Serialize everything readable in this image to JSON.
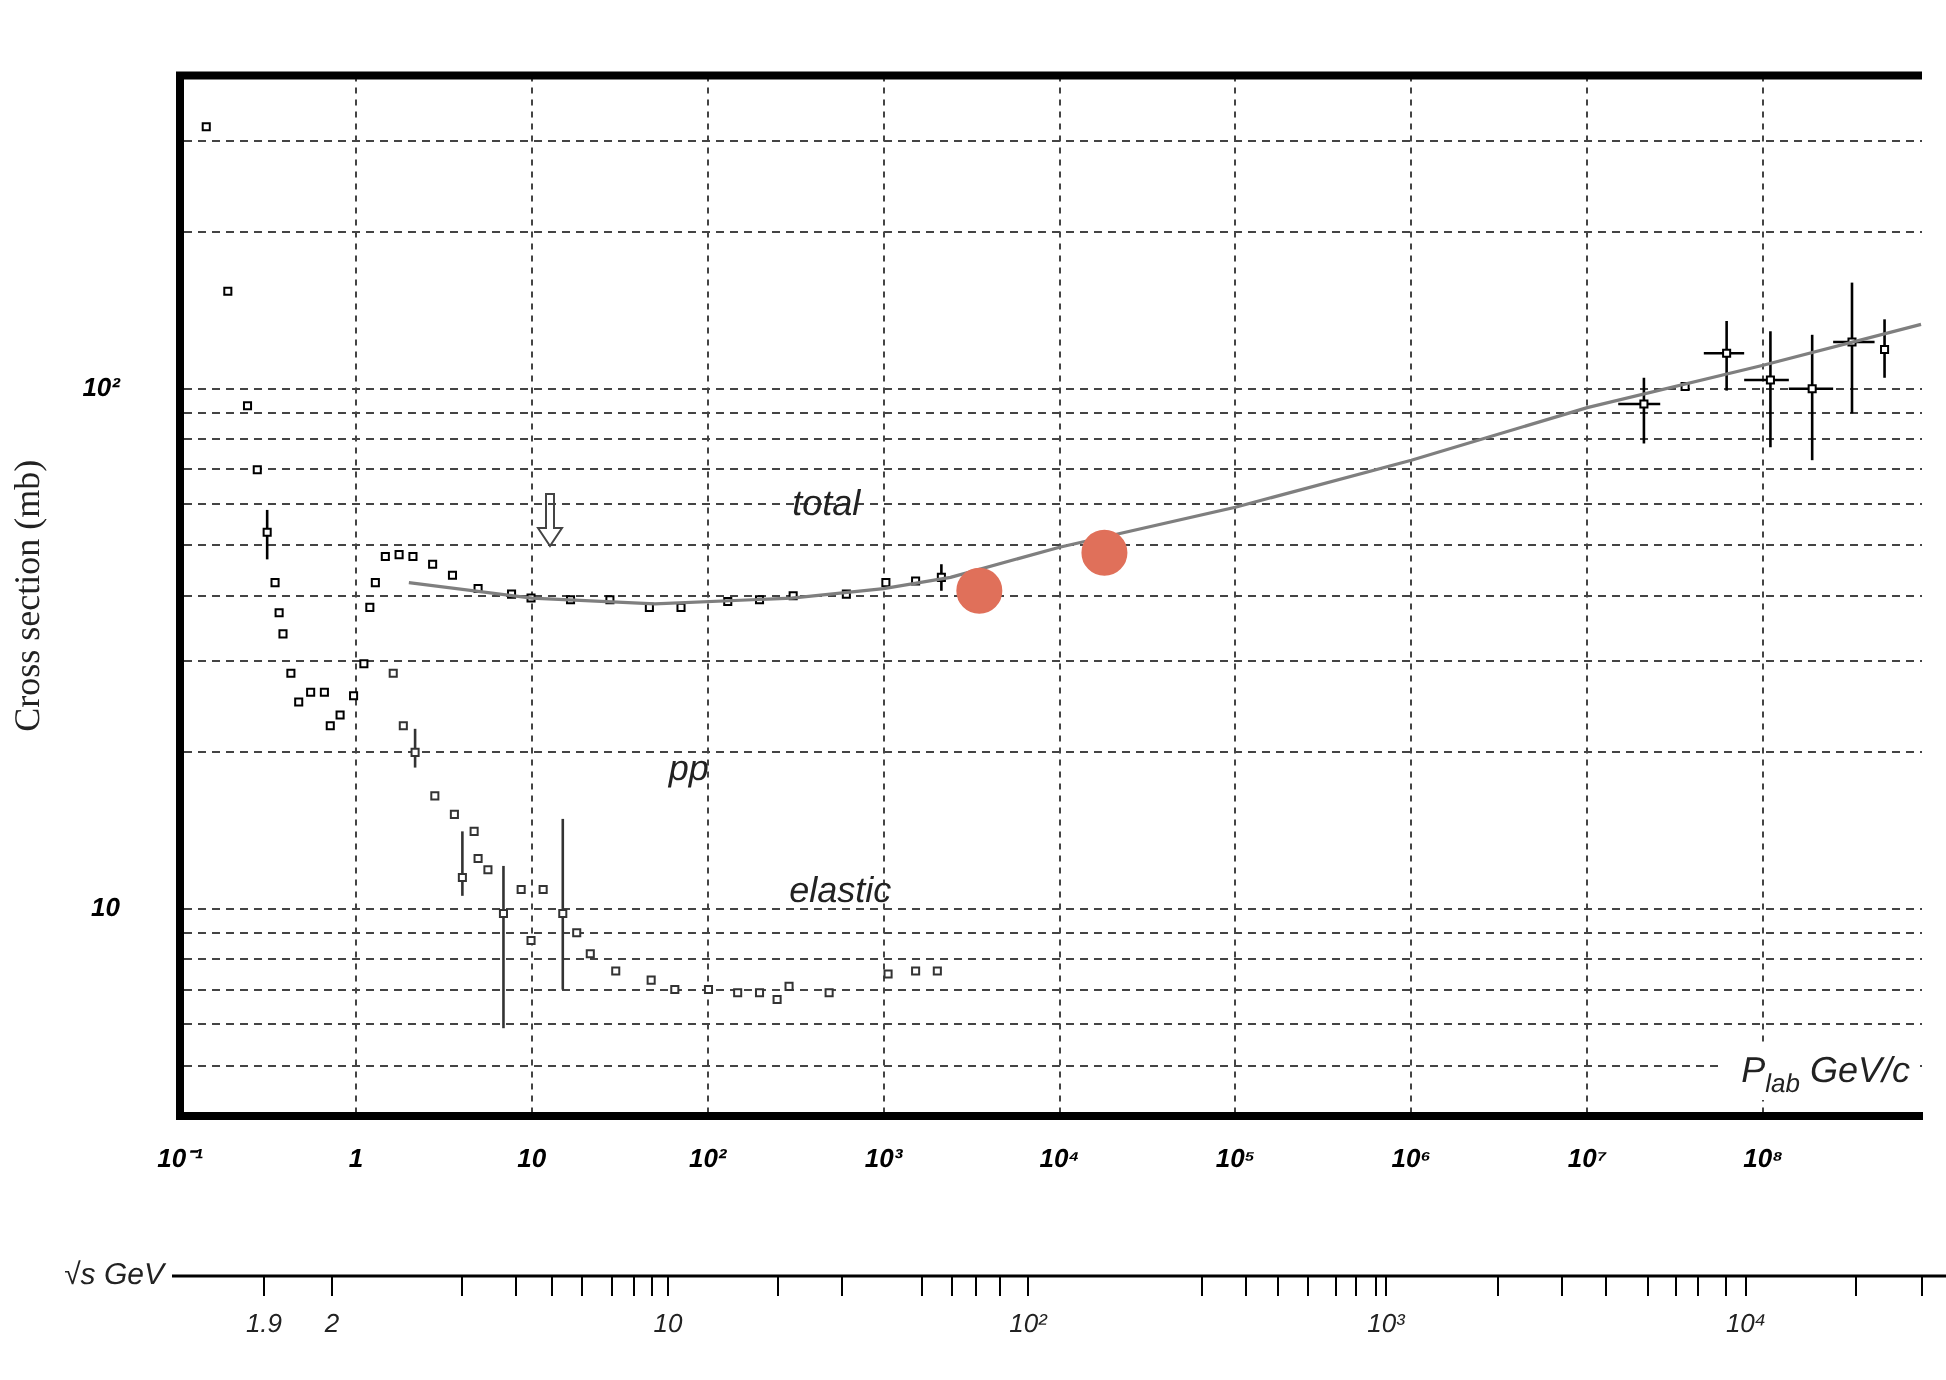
{
  "chart_data": [
    {
      "type": "scatter",
      "ylabel": "Cross section (mb)",
      "xlabel": "P$_{lab}$ GeV/c",
      "log": "xy",
      "grid": true,
      "xlim": [
        0.1,
        800000000.0
      ],
      "ylim": [
        4,
        400
      ],
      "xticks": [
        {
          "value": 0.1,
          "label": "10⁻¹"
        },
        1,
        10,
        {
          "value": 100,
          "label": "10²"
        },
        {
          "value": 1000,
          "label": "10³"
        },
        {
          "value": 10000,
          "label": "10⁴"
        },
        {
          "value": 100000,
          "label": "10⁵"
        },
        {
          "value": 1000000,
          "label": "10⁶"
        },
        {
          "value": 10000000,
          "label": "10⁷"
        },
        {
          "value": 100000000,
          "label": "10⁸"
        }
      ],
      "yticks": [
        {
          "value": 5,
          "label": null
        },
        {
          "value": 6,
          "label": null
        },
        {
          "value": 7,
          "label": null
        },
        {
          "value": 8,
          "label": null
        },
        {
          "value": 9,
          "label": null
        },
        10,
        {
          "value": 20,
          "label": null
        },
        {
          "value": 30,
          "label": null
        },
        {
          "value": 40,
          "label": null
        },
        {
          "value": 50,
          "label": null
        },
        {
          "value": 60,
          "label": null
        },
        {
          "value": 70,
          "label": null
        },
        {
          "value": 80,
          "label": null
        },
        {
          "value": 90,
          "label": null
        },
        {
          "value": 100,
          "label": "10²"
        },
        {
          "value": 200,
          "label": null
        },
        {
          "value": 300,
          "label": null
        }
      ],
      "annotations": [
        "total",
        "pp",
        "elastic"
      ],
      "series": [
        {
          "marker": "square",
          "color": "#000000",
          "x": [
            0.141,
            0.187,
            0.242,
            0.275,
            0.313,
            0.347,
            0.366,
            0.385,
            0.427,
            0.473,
            0.553,
            0.662,
            0.715,
            0.813,
            0.97,
            1.11,
            1.2,
            1.29,
            1.47,
            1.76,
            2.11,
            2.73,
            3.54,
            4.95,
            7.67,
            9.9,
            16.6,
            27.8,
            46.6,
            70.5,
            130,
            197,
            306,
            614,
            1030,
            1520,
            2130,
            21000000.0,
            36000000.0,
            62000000.0,
            110000000.0,
            190000000.0,
            320000000.0,
            490000000.0
          ],
          "values": [
            319,
            154,
            92.8,
            69.9,
            53,
            42.4,
            37.1,
            33.8,
            28.4,
            25,
            26.1,
            26.1,
            22.5,
            23.6,
            25.7,
            29.6,
            38,
            42.4,
            47.6,
            48,
            47.6,
            46,
            43.8,
            41.3,
            40.3,
            39.6,
            39.3,
            39.3,
            38,
            38,
            39,
            39.3,
            40,
            40.3,
            42.4,
            42.7,
            43.4,
            93.5,
            101,
            117,
            104,
            100,
            123,
            119
          ],
          "errors": [
            null,
            null,
            null,
            null,
            [
              47,
              58.5
            ],
            null,
            null,
            null,
            null,
            null,
            null,
            null,
            null,
            null,
            null,
            null,
            null,
            null,
            null,
            null,
            null,
            null,
            null,
            null,
            null,
            null,
            null,
            null,
            null,
            null,
            null,
            null,
            null,
            null,
            null,
            null,
            [
              40.9,
              46
            ],
            [
              78.5,
              105
            ],
            null,
            [
              99.2,
              135
            ],
            [
              77.2,
              129
            ],
            [
              72.9,
              127
            ],
            [
              89.7,
              160
            ],
            [
              105,
              136
            ]
          ],
          "xerrors": [
            null,
            null,
            null,
            null,
            null,
            null,
            null,
            null,
            null,
            null,
            null,
            null,
            null,
            null,
            null,
            null,
            null,
            null,
            null,
            null,
            null,
            null,
            null,
            null,
            null,
            null,
            null,
            null,
            null,
            null,
            null,
            null,
            null,
            null,
            null,
            null,
            null,
            [
              15000000.0,
              26000000.0
            ],
            null,
            [
              46000000.0,
              78000000.0
            ],
            [
              78000000.0,
              140000000.0
            ],
            [
              140000000.0,
              250000000.0
            ],
            [
              250000000.0,
              430000000.0
            ],
            null
          ]
        },
        {
          "marker": "square",
          "color": "#333333",
          "x": [
            1.63,
            1.86,
            2.17,
            2.81,
            3.63,
            4.03,
            4.7,
            4.95,
            5.63,
            6.9,
            8.7,
            9.9,
            11.6,
            15,
            18,
            21.5,
            30,
            47.7,
            65,
            101,
            148,
            197,
            248,
            290,
            490,
            1060,
            1520,
            2020
          ],
          "values": [
            28.4,
            22.5,
            20,
            16.5,
            15.2,
            11.5,
            14.1,
            12.5,
            11.9,
            9.8,
            10.9,
            8.7,
            10.9,
            9.8,
            9,
            8.2,
            7.6,
            7.3,
            7,
            7,
            6.9,
            6.9,
            6.7,
            7.1,
            6.9,
            7.5,
            7.6,
            7.6
          ],
          "errors": [
            null,
            null,
            [
              18.7,
              22.2
            ],
            null,
            null,
            [
              10.6,
              14.1
            ],
            null,
            null,
            null,
            [
              5.9,
              12.1
            ],
            null,
            null,
            null,
            [
              7,
              14.9
            ],
            null,
            null,
            null,
            null,
            null,
            null,
            null,
            null,
            null,
            null,
            null,
            null,
            null,
            null
          ]
        },
        {
          "type": "line",
          "marker": "none",
          "line_style": "solid",
          "color": "#7f7f7f",
          "x": [
            2,
            10,
            50,
            300,
            1000,
            2400,
            10000,
            100000,
            1000000,
            10000000,
            100000000,
            790000000
          ],
          "values": [
            42.4,
            39.6,
            38.6,
            39.6,
            41.3,
            43.4,
            49.6,
            59.2,
            72.9,
            92,
            111,
            133
          ]
        },
        {
          "marker": "circle",
          "color": "#e0705a",
          "x": [
            3500,
            18000
          ],
          "values": [
            40.9,
            48.4
          ]
        }
      ]
    },
    {
      "type": "other",
      "xlabel": "√s GeV",
      "annotations": [
        "1.9",
        "2",
        "10",
        "10²",
        "10³",
        "10⁴"
      ]
    }
  ]
}
